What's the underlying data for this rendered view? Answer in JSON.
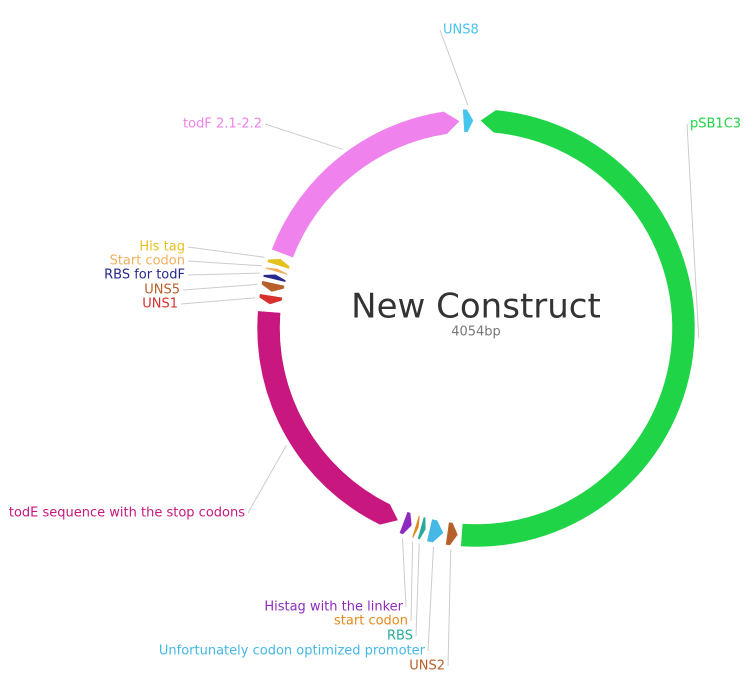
{
  "title": "New Construct",
  "length": "4054bp",
  "features": [
    {
      "label": "UNS8"
    },
    {
      "label": "pSB1C3"
    },
    {
      "label": "UNS2"
    },
    {
      "label": "Unfortunately codon optimized promoter"
    },
    {
      "label": "RBS"
    },
    {
      "label": "start codon"
    },
    {
      "label": "Histag with the linker"
    },
    {
      "label": "todE sequence with the stop codons"
    },
    {
      "label": "UNS1"
    },
    {
      "label": "UNS5"
    },
    {
      "label": "RBS for todF"
    },
    {
      "label": "Start codon"
    },
    {
      "label": "His tag"
    },
    {
      "label": "todF 2.1-2.2"
    }
  ]
}
